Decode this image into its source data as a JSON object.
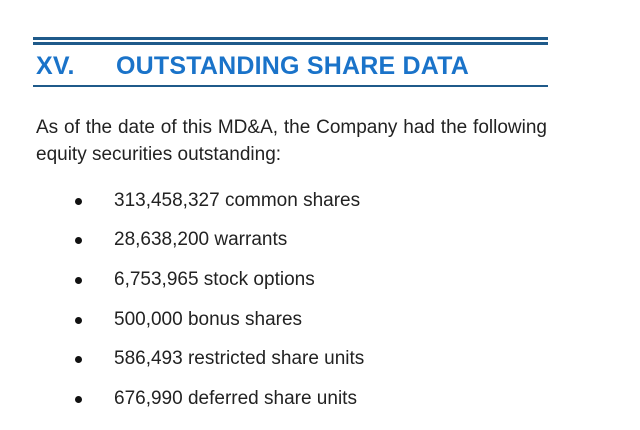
{
  "section": {
    "number": "XV.",
    "title": "OUTSTANDING SHARE DATA"
  },
  "intro": "As of the date of this MD&A, the Company had the following equity securities outstanding:",
  "items": [
    "313,458,327 common shares",
    "28,638,200 warrants",
    "6,753,965 stock options",
    "500,000 bonus shares",
    "586,493 restricted share units",
    "676,990 deferred share units"
  ],
  "colors": {
    "heading": "#1a73c9",
    "rule": "#1f5a8a",
    "text": "#222222"
  }
}
